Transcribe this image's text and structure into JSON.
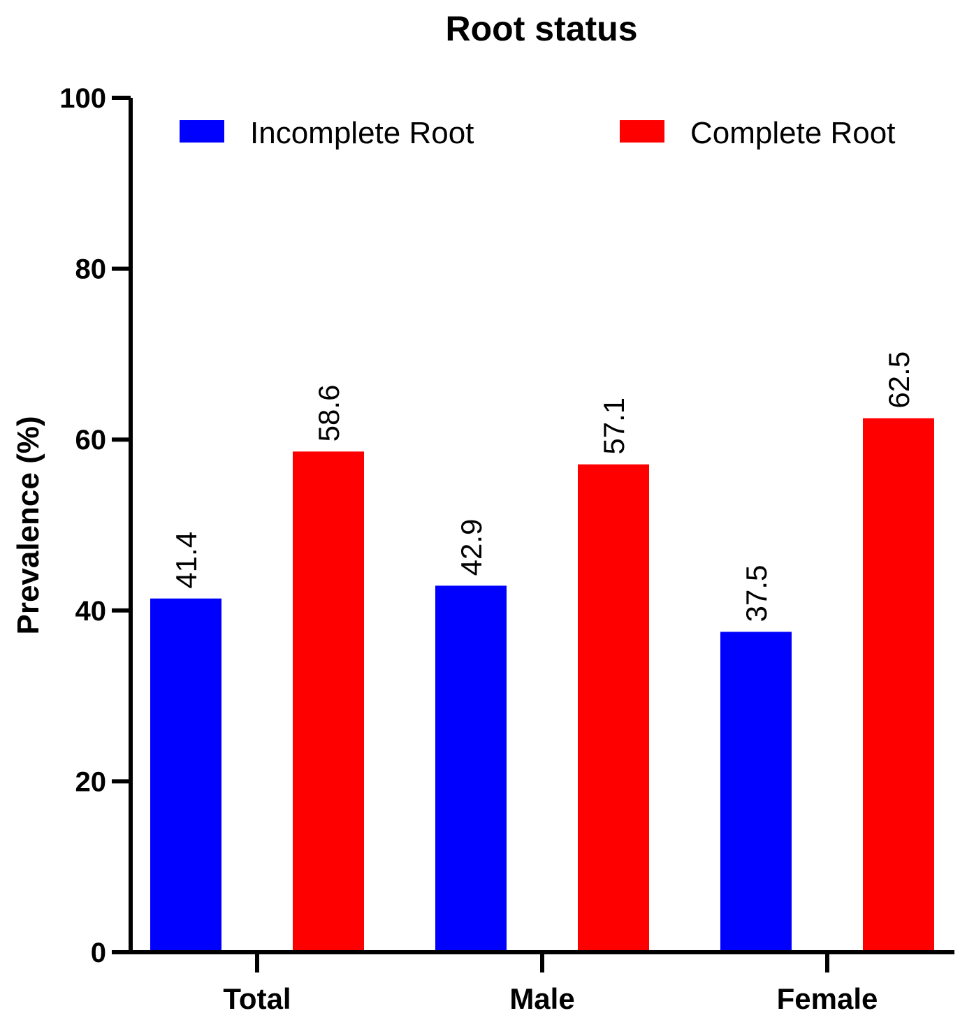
{
  "chart_data": {
    "type": "bar",
    "title": "Root status",
    "xlabel": "",
    "ylabel": "Prevalence (%)",
    "ylim": [
      0,
      100
    ],
    "yticks": [
      0,
      20,
      40,
      60,
      80,
      100
    ],
    "categories": [
      "Total",
      "Male",
      "Female"
    ],
    "series": [
      {
        "name": "Incomplete Root",
        "color": "#0000ff",
        "values": [
          41.4,
          42.9,
          37.5
        ],
        "labels": [
          "41.4",
          "42.9",
          "37.5"
        ]
      },
      {
        "name": "Complete Root",
        "color": "#ff0000",
        "values": [
          58.6,
          57.1,
          62.5
        ],
        "labels": [
          "58.6",
          "57.1",
          "62.5"
        ]
      }
    ],
    "legend": "top",
    "grid": false
  }
}
